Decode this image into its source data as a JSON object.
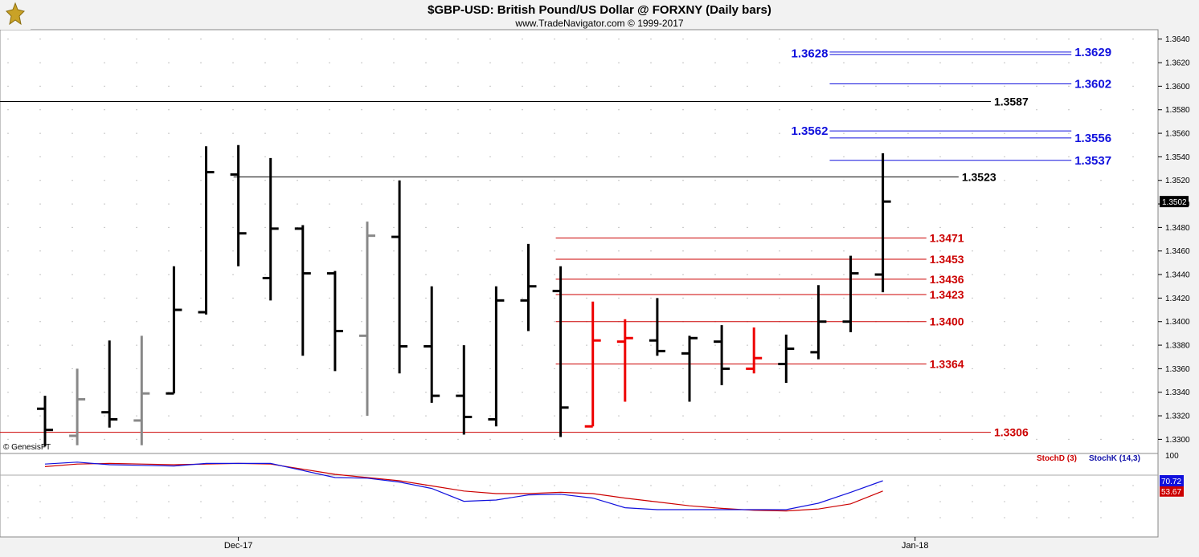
{
  "header": {
    "title": "$GBP-USD:  British Pound/US Dollar @ FORXNY  (Daily bars)",
    "subtitle": "www.TradeNavigator.com © 1999-2017"
  },
  "watermark": "© GenesisFT",
  "chart_data": [
    {
      "type": "ohlc",
      "panel": "price",
      "y_ticks": [
        "1.3640",
        "1.3620",
        "1.3600",
        "1.3580",
        "1.3560",
        "1.3540",
        "1.3520",
        "1.3500",
        "1.3480",
        "1.3460",
        "1.3440",
        "1.3420",
        "1.3400",
        "1.3380",
        "1.3360",
        "1.3340",
        "1.3320",
        "1.3300"
      ],
      "ylim": [
        1.3288,
        1.3648
      ],
      "x_ticks": [
        {
          "label": "Dec-17",
          "bar": 6
        },
        {
          "label": "Jan-18",
          "bar": 27
        }
      ],
      "last_price": {
        "label": "1.3502",
        "value": 1.3502
      },
      "bar_colors": {
        "up": "#000000",
        "down": "#000000",
        "gray": "#888888",
        "red": "#ee0000"
      },
      "bars": [
        {
          "o": 1.3326,
          "h": 1.3337,
          "l": 1.3294,
          "c": 1.3308,
          "color": "black"
        },
        {
          "o": 1.3303,
          "h": 1.336,
          "l": 1.3295,
          "c": 1.3334,
          "color": "gray"
        },
        {
          "o": 1.3323,
          "h": 1.3384,
          "l": 1.331,
          "c": 1.3317,
          "color": "black"
        },
        {
          "o": 1.3316,
          "h": 1.3388,
          "l": 1.3295,
          "c": 1.3339,
          "color": "gray"
        },
        {
          "o": 1.3339,
          "h": 1.3447,
          "l": 1.3339,
          "c": 1.341,
          "color": "black"
        },
        {
          "o": 1.3408,
          "h": 1.3549,
          "l": 1.3406,
          "c": 1.3527,
          "color": "black"
        },
        {
          "o": 1.3525,
          "h": 1.355,
          "l": 1.3447,
          "c": 1.3475,
          "color": "black"
        },
        {
          "o": 1.3437,
          "h": 1.3539,
          "l": 1.3418,
          "c": 1.3479,
          "color": "black"
        },
        {
          "o": 1.3479,
          "h": 1.3482,
          "l": 1.3371,
          "c": 1.3441,
          "color": "black"
        },
        {
          "o": 1.3441,
          "h": 1.3443,
          "l": 1.3358,
          "c": 1.3392,
          "color": "black"
        },
        {
          "o": 1.3388,
          "h": 1.3485,
          "l": 1.332,
          "c": 1.3473,
          "color": "gray"
        },
        {
          "o": 1.3472,
          "h": 1.352,
          "l": 1.3356,
          "c": 1.3379,
          "color": "black"
        },
        {
          "o": 1.3379,
          "h": 1.343,
          "l": 1.3331,
          "c": 1.3337,
          "color": "black"
        },
        {
          "o": 1.3337,
          "h": 1.338,
          "l": 1.3304,
          "c": 1.3319,
          "color": "black"
        },
        {
          "o": 1.3317,
          "h": 1.343,
          "l": 1.3311,
          "c": 1.3418,
          "color": "black"
        },
        {
          "o": 1.3418,
          "h": 1.3466,
          "l": 1.3392,
          "c": 1.343,
          "color": "black"
        },
        {
          "o": 1.3426,
          "h": 1.3447,
          "l": 1.3302,
          "c": 1.3327,
          "color": "black"
        },
        {
          "o": 1.3311,
          "h": 1.3417,
          "l": 1.3311,
          "c": 1.3384,
          "color": "red"
        },
        {
          "o": 1.3383,
          "h": 1.3402,
          "l": 1.3332,
          "c": 1.3386,
          "color": "red"
        },
        {
          "o": 1.3384,
          "h": 1.342,
          "l": 1.3371,
          "c": 1.3375,
          "color": "black"
        },
        {
          "o": 1.3373,
          "h": 1.3388,
          "l": 1.3332,
          "c": 1.3386,
          "color": "black"
        },
        {
          "o": 1.3383,
          "h": 1.3397,
          "l": 1.3346,
          "c": 1.336,
          "color": "black"
        },
        {
          "o": 1.336,
          "h": 1.3395,
          "l": 1.3356,
          "c": 1.3369,
          "color": "red"
        },
        {
          "o": 1.3364,
          "h": 1.3389,
          "l": 1.3348,
          "c": 1.3377,
          "color": "black"
        },
        {
          "o": 1.3374,
          "h": 1.3431,
          "l": 1.3368,
          "c": 1.34,
          "color": "black"
        },
        {
          "o": 1.34,
          "h": 1.3456,
          "l": 1.3391,
          "c": 1.3441,
          "color": "black"
        },
        {
          "o": 1.344,
          "h": 1.3543,
          "l": 1.3425,
          "c": 1.3502,
          "color": "black"
        }
      ],
      "levels": [
        {
          "value": 1.3629,
          "label": "1.3629",
          "color": "#1111dd",
          "style": "double",
          "x_from_bar": 24.5,
          "x_to_bar": 32
        },
        {
          "value": 1.3628,
          "label": "1.3628",
          "color": "#1111dd",
          "style": "left-label"
        },
        {
          "value": 1.3602,
          "label": "1.3602",
          "color": "#1111dd",
          "style": "single",
          "x_from_bar": 24.5,
          "x_to_bar": 32
        },
        {
          "value": 1.3587,
          "label": "1.3587",
          "color": "#000000",
          "style": "single",
          "x_from_bar": -2,
          "x_to_bar": 29.5
        },
        {
          "value": 1.3562,
          "label": "1.3562",
          "color": "#1111dd",
          "style": "left-label-line"
        },
        {
          "value": 1.3556,
          "label": "1.3556",
          "color": "#1111dd",
          "style": "single",
          "x_from_bar": 24.5,
          "x_to_bar": 32
        },
        {
          "value": 1.3537,
          "label": "1.3537",
          "color": "#1111dd",
          "style": "single",
          "x_from_bar": 24.5,
          "x_to_bar": 32
        },
        {
          "value": 1.3523,
          "label": "1.3523",
          "color": "#000000",
          "style": "single",
          "x_from_bar": 6,
          "x_to_bar": 28.5
        },
        {
          "value": 1.3471,
          "label": "1.3471",
          "color": "#cc0000",
          "style": "single",
          "x_from_bar": 16,
          "x_to_bar": 27.5
        },
        {
          "value": 1.3453,
          "label": "1.3453",
          "color": "#cc0000",
          "style": "single",
          "x_from_bar": 16,
          "x_to_bar": 27.5
        },
        {
          "value": 1.3436,
          "label": "1.3436",
          "color": "#cc0000",
          "style": "single",
          "x_from_bar": 16,
          "x_to_bar": 27.5
        },
        {
          "value": 1.3423,
          "label": "1.3423",
          "color": "#cc0000",
          "style": "single",
          "x_from_bar": 16,
          "x_to_bar": 27.5
        },
        {
          "value": 1.34,
          "label": "1.3400",
          "color": "#cc0000",
          "style": "single",
          "x_from_bar": 16,
          "x_to_bar": 27.5
        },
        {
          "value": 1.3364,
          "label": "1.3364",
          "color": "#cc0000",
          "style": "single",
          "x_from_bar": 16,
          "x_to_bar": 27.5
        },
        {
          "value": 1.3306,
          "label": "1.3306",
          "color": "#cc0000",
          "style": "single",
          "x_from_bar": -2,
          "x_to_bar": 29.5
        }
      ]
    },
    {
      "type": "line",
      "panel": "stochastic",
      "ylim": [
        0,
        100
      ],
      "y_ticks": [
        "100"
      ],
      "legend": [
        {
          "label": "StochD (3)",
          "color": "#cc0000"
        },
        {
          "label": "StochK (14,3)",
          "color": "#1111dd"
        }
      ],
      "series": [
        {
          "name": "StochD (3)",
          "color": "#cc0000",
          "last_label": "53.67",
          "values": [
            92,
            96,
            97,
            96,
            95,
            96,
            97,
            96,
            88,
            80,
            75,
            70,
            62,
            54,
            50,
            50,
            52,
            50,
            43,
            37,
            31,
            27,
            24,
            23,
            26,
            34,
            54
          ]
        },
        {
          "name": "StochK (14,3)",
          "color": "#1111dd",
          "last_label": "70.72",
          "values": [
            96,
            99,
            95,
            94,
            93,
            97,
            97,
            97,
            86,
            75,
            74,
            68,
            58,
            38,
            40,
            48,
            49,
            43,
            28,
            25,
            25,
            25,
            25,
            25,
            35,
            52,
            70
          ]
        }
      ]
    }
  ]
}
